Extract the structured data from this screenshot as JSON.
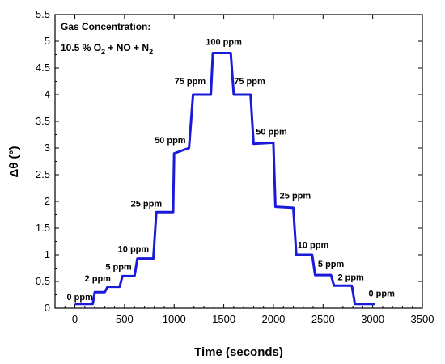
{
  "chart_data": {
    "type": "line",
    "xlabel": "Time (seconds)",
    "ylabel": "Δθ (°)",
    "xlim": [
      -200,
      3500
    ],
    "ylim": [
      0,
      5.5
    ],
    "x_ticks": [
      0,
      500,
      1000,
      1500,
      2000,
      2500,
      3000,
      3500
    ],
    "y_ticks": [
      0,
      0.5,
      1,
      1.5,
      2,
      2.5,
      3,
      3.5,
      4,
      4.5,
      5,
      5.5
    ],
    "x_tick_labels": [
      "0",
      "500",
      "1000",
      "1500",
      "2000",
      "2500",
      "3000",
      "3500"
    ],
    "y_tick_labels": [
      "0",
      "0.5",
      "1",
      "1.5",
      "2",
      "2.5",
      "3",
      "3.5",
      "4",
      "4.5",
      "5",
      "5.5"
    ],
    "grid": false,
    "line_color": "#1a1adb",
    "legend": {
      "title": "Gas Concentration:",
      "line_prefix": "10.5 % O",
      "sub1": "2",
      "line_middle": " +  NO + N",
      "sub2": "2"
    },
    "series": [
      {
        "x": [
          0,
          180,
          200,
          300,
          330,
          450,
          480,
          600,
          630,
          790,
          820,
          990,
          1000,
          1150,
          1190,
          1370,
          1390,
          1570,
          1600,
          1770,
          1800,
          2000,
          2020,
          2200,
          2230,
          2390,
          2420,
          2580,
          2610,
          2790,
          2820,
          3020
        ],
        "y": [
          0.08,
          0.08,
          0.3,
          0.3,
          0.4,
          0.4,
          0.6,
          0.6,
          0.93,
          0.93,
          1.8,
          1.8,
          2.9,
          3.0,
          4.0,
          4.0,
          4.78,
          4.78,
          4.0,
          4.0,
          3.08,
          3.1,
          1.9,
          1.88,
          1.0,
          1.0,
          0.62,
          0.62,
          0.42,
          0.42,
          0.08,
          0.08
        ]
      }
    ],
    "annotations": [
      {
        "text": "0 ppm",
        "x": 50,
        "y": 0.15
      },
      {
        "text": "2 ppm",
        "x": 230,
        "y": 0.5
      },
      {
        "text": "5 ppm",
        "x": 440,
        "y": 0.72
      },
      {
        "text": "10 ppm",
        "x": 590,
        "y": 1.05
      },
      {
        "text": "25 ppm",
        "x": 720,
        "y": 1.9
      },
      {
        "text": "50 ppm",
        "x": 960,
        "y": 3.09
      },
      {
        "text": "75 ppm",
        "x": 1160,
        "y": 4.2
      },
      {
        "text": "100 ppm",
        "x": 1500,
        "y": 4.93
      },
      {
        "text": "75 ppm",
        "x": 1760,
        "y": 4.2
      },
      {
        "text": "50 ppm",
        "x": 1980,
        "y": 3.25
      },
      {
        "text": "25 ppm",
        "x": 2220,
        "y": 2.05
      },
      {
        "text": "10 ppm",
        "x": 2400,
        "y": 1.13
      },
      {
        "text": "5 ppm",
        "x": 2580,
        "y": 0.77
      },
      {
        "text": "2 ppm",
        "x": 2780,
        "y": 0.52
      },
      {
        "text": "0 ppm",
        "x": 3090,
        "y": 0.22
      }
    ]
  }
}
